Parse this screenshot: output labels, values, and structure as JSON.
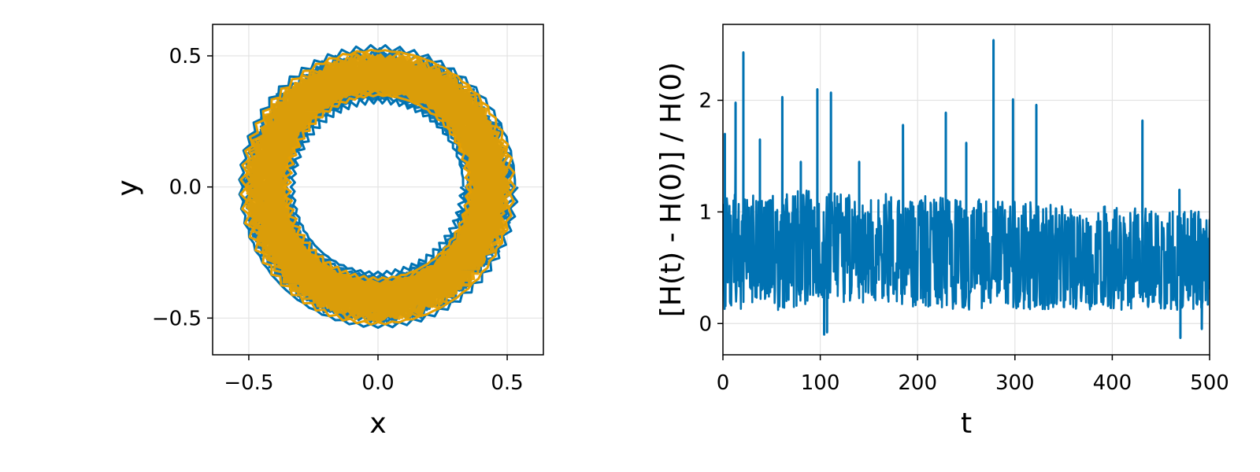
{
  "chart_data": [
    {
      "type": "line",
      "title": "",
      "xlabel": "x",
      "ylabel": "y",
      "xlim": [
        -0.64,
        0.64
      ],
      "ylim": [
        -0.64,
        0.62
      ],
      "xticks": [
        -0.5,
        0.0,
        0.5
      ],
      "yticks": [
        -0.5,
        0.0,
        0.5
      ],
      "xtick_labels": [
        "−0.5",
        "0.0",
        "0.5"
      ],
      "ytick_labels": [
        "−0.5",
        "0.0",
        "0.5"
      ],
      "grid": true,
      "aspect": "equal",
      "series": [
        {
          "color": "#0072b2",
          "trajectory": {
            "shape": "annulus",
            "center": [
              0.0,
              0.0
            ],
            "inner_radius": 0.33,
            "outer_radius": 0.53
          }
        },
        {
          "color": "#e69f00",
          "trajectory": {
            "shape": "annulus",
            "center": [
              0.0,
              0.0
            ],
            "inner_radius": 0.35,
            "outer_radius": 0.52
          }
        }
      ]
    },
    {
      "type": "line",
      "title": "",
      "xlabel": "t",
      "ylabel": "[H(t) - H(0)] / H(0)",
      "xlim": [
        0,
        500
      ],
      "ylim": [
        -0.28,
        2.68
      ],
      "xticks": [
        0,
        100,
        200,
        300,
        400,
        500
      ],
      "yticks": [
        0,
        1,
        2
      ],
      "xtick_labels": [
        "0",
        "100",
        "200",
        "300",
        "400",
        "500"
      ],
      "ytick_labels": [
        "0",
        "1",
        "2"
      ],
      "grid": true,
      "series": [
        {
          "color": "#0072b2",
          "peaks": [
            {
              "x": 2,
              "y": 1.7
            },
            {
              "x": 13,
              "y": 1.98
            },
            {
              "x": 21,
              "y": 2.43
            },
            {
              "x": 38,
              "y": 1.65
            },
            {
              "x": 61,
              "y": 2.03
            },
            {
              "x": 80,
              "y": 1.45
            },
            {
              "x": 97,
              "y": 2.1
            },
            {
              "x": 111,
              "y": 2.07
            },
            {
              "x": 140,
              "y": 1.45
            },
            {
              "x": 185,
              "y": 1.78
            },
            {
              "x": 229,
              "y": 1.89
            },
            {
              "x": 250,
              "y": 1.62
            },
            {
              "x": 278,
              "y": 2.54
            },
            {
              "x": 298,
              "y": 2.01
            },
            {
              "x": 322,
              "y": 1.96
            },
            {
              "x": 431,
              "y": 1.82
            },
            {
              "x": 469,
              "y": 1.2
            }
          ],
          "dips": [
            {
              "x": 104,
              "y": -0.1
            },
            {
              "x": 107,
              "y": -0.08
            },
            {
              "x": 470,
              "y": -0.13
            },
            {
              "x": 492,
              "y": -0.05
            }
          ],
          "envelope": [
            {
              "x": 0,
              "low": 0.0,
              "mid": 0.65,
              "high": 1.15
            },
            {
              "x": 100,
              "low": 0.2,
              "mid": 0.7,
              "high": 1.2
            },
            {
              "x": 200,
              "low": 0.15,
              "mid": 0.62,
              "high": 1.15
            },
            {
              "x": 300,
              "low": 0.1,
              "mid": 0.55,
              "high": 1.1
            },
            {
              "x": 400,
              "low": 0.05,
              "mid": 0.47,
              "high": 1.05
            },
            {
              "x": 500,
              "low": 0.0,
              "mid": 0.42,
              "high": 1.0
            }
          ]
        }
      ]
    }
  ]
}
